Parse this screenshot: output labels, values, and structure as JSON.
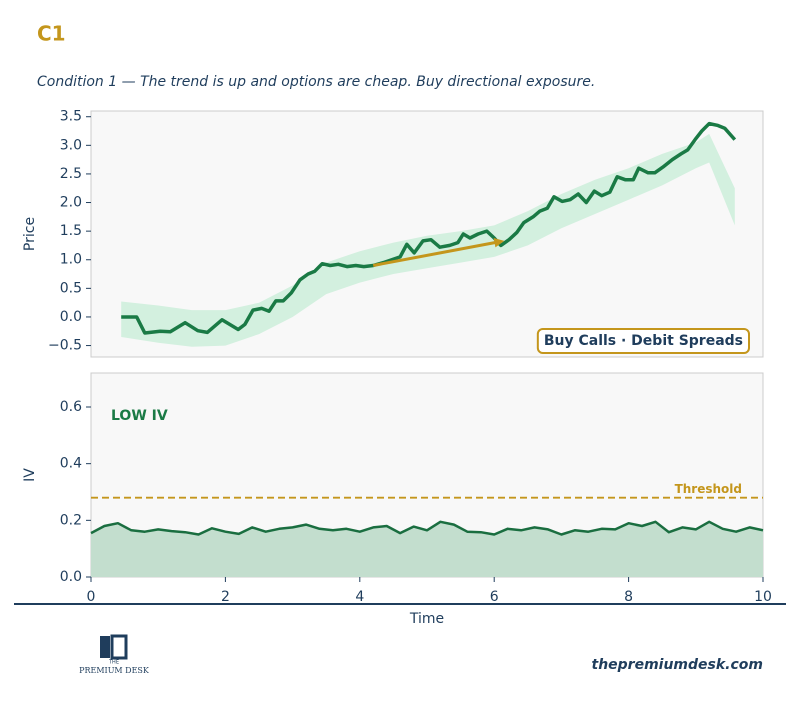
{
  "header": {
    "title": "C1",
    "subtitle": "Condition 1 — The trend is up and options are cheap. Buy directional exposure."
  },
  "chart_data": [
    {
      "type": "line",
      "ylabel": "Price",
      "xlim": [
        0,
        10
      ],
      "ylim": [
        -0.7,
        3.6
      ],
      "yticks": [
        {
          "value": -0.5,
          "label": "−0.5"
        },
        {
          "value": 0,
          "label": "0.0"
        },
        0.5,
        {
          "value": 1,
          "label": "1.0"
        },
        1.5,
        {
          "value": 2,
          "label": "2.0"
        },
        2.5,
        {
          "value": 3,
          "label": "3.0"
        },
        3.5
      ],
      "x": [
        0.45,
        0.68,
        0.8,
        1.03,
        1.18,
        1.4,
        1.59,
        1.73,
        1.95,
        2.19,
        2.29,
        2.41,
        2.54,
        2.65,
        2.75,
        2.86,
        2.98,
        3.11,
        3.23,
        3.33,
        3.44,
        3.56,
        3.68,
        3.81,
        3.94,
        4.06,
        4.2,
        4.35,
        4.48,
        4.6,
        4.7,
        4.81,
        4.94,
        5.06,
        5.19,
        5.34,
        5.46,
        5.54,
        5.64,
        5.76,
        5.89,
        6.0,
        6.1,
        6.22,
        6.34,
        6.44,
        6.58,
        6.68,
        6.79,
        6.89,
        7.01,
        7.13,
        7.25,
        7.37,
        7.49,
        7.6,
        7.72,
        7.83,
        7.95,
        8.07,
        8.15,
        8.29,
        8.39,
        8.51,
        8.65,
        8.78,
        8.88,
        8.99,
        9.09,
        9.2,
        9.32,
        9.43,
        9.58
      ],
      "series": [
        {
          "color": "#1a7a45",
          "values": [
            0.0,
            0.0,
            -0.28,
            -0.25,
            -0.26,
            -0.1,
            -0.24,
            -0.27,
            -0.05,
            -0.22,
            -0.13,
            0.12,
            0.15,
            0.1,
            0.28,
            0.28,
            0.42,
            0.65,
            0.75,
            0.8,
            0.93,
            0.9,
            0.92,
            0.88,
            0.9,
            0.88,
            0.9,
            0.95,
            1.0,
            1.05,
            1.27,
            1.12,
            1.33,
            1.35,
            1.22,
            1.25,
            1.3,
            1.45,
            1.38,
            1.45,
            1.5,
            1.38,
            1.25,
            1.35,
            1.48,
            1.65,
            1.75,
            1.85,
            1.9,
            2.1,
            2.02,
            2.05,
            2.15,
            2.0,
            2.2,
            2.12,
            2.18,
            2.45,
            2.4,
            2.4,
            2.6,
            2.52,
            2.52,
            2.62,
            2.75,
            2.85,
            2.92,
            3.1,
            3.25,
            3.38,
            3.35,
            3.3,
            3.1
          ]
        }
      ],
      "band": {
        "color": "#d3f0df",
        "x": [
          0.45,
          1.0,
          1.5,
          2.0,
          2.5,
          3.0,
          3.5,
          4.0,
          4.5,
          5.0,
          5.5,
          6.0,
          6.5,
          7.0,
          7.5,
          8.0,
          8.5,
          9.0,
          9.2,
          9.58
        ],
        "upper": [
          0.27,
          0.2,
          0.12,
          0.12,
          0.25,
          0.55,
          0.95,
          1.15,
          1.3,
          1.42,
          1.5,
          1.6,
          1.85,
          2.15,
          2.4,
          2.6,
          2.85,
          3.05,
          3.2,
          2.25
        ],
        "lower": [
          -0.35,
          -0.45,
          -0.52,
          -0.5,
          -0.3,
          0.0,
          0.4,
          0.6,
          0.75,
          0.85,
          0.95,
          1.05,
          1.25,
          1.55,
          1.8,
          2.05,
          2.3,
          2.6,
          2.7,
          1.6
        ]
      },
      "arrow": {
        "color": "#c4961c",
        "x": [
          4.2,
          6.15
        ],
        "y": [
          0.9,
          1.33
        ]
      },
      "annotation": "Buy Calls · Debit Spreads"
    },
    {
      "type": "area",
      "ylabel": "IV",
      "xlabel": "Time",
      "xlim": [
        0,
        10
      ],
      "ylim": [
        0,
        0.72
      ],
      "xticks": [
        0,
        2,
        4,
        6,
        8,
        10
      ],
      "yticks": [
        {
          "value": 0,
          "label": "0.0"
        },
        0.2,
        0.4,
        0.6
      ],
      "x": [
        0,
        0.2,
        0.4,
        0.6,
        0.8,
        1,
        1.2,
        1.4,
        1.6,
        1.8,
        2,
        2.2,
        2.4,
        2.6,
        2.8,
        3,
        3.2,
        3.4,
        3.6,
        3.8,
        4,
        4.2,
        4.4,
        4.6,
        4.8,
        5,
        5.2,
        5.4,
        5.6,
        5.8,
        6,
        6.2,
        6.4,
        6.6,
        6.8,
        7,
        7.2,
        7.4,
        7.6,
        7.8,
        8,
        8.2,
        8.4,
        8.6,
        8.8,
        9,
        9.2,
        9.4,
        9.6,
        9.8,
        10
      ],
      "series": [
        {
          "color": "#1a6e40",
          "fill": "#c3dece",
          "values": [
            0.155,
            0.18,
            0.19,
            0.165,
            0.16,
            0.168,
            0.162,
            0.158,
            0.15,
            0.172,
            0.16,
            0.152,
            0.175,
            0.16,
            0.17,
            0.175,
            0.185,
            0.17,
            0.165,
            0.17,
            0.16,
            0.175,
            0.18,
            0.155,
            0.178,
            0.165,
            0.195,
            0.185,
            0.16,
            0.158,
            0.15,
            0.17,
            0.165,
            0.175,
            0.168,
            0.15,
            0.165,
            0.16,
            0.17,
            0.168,
            0.19,
            0.18,
            0.195,
            0.158,
            0.175,
            0.168,
            0.195,
            0.17,
            0.16,
            0.175,
            0.165
          ]
        }
      ],
      "threshold": {
        "value": 0.28,
        "label": "Threshold",
        "color": "#c4961c"
      },
      "annotation": "LOW IV"
    }
  ],
  "footer": {
    "url": "thepremiumdesk.com",
    "logo_small": "THE",
    "logo": "PREMIUM DESK"
  }
}
